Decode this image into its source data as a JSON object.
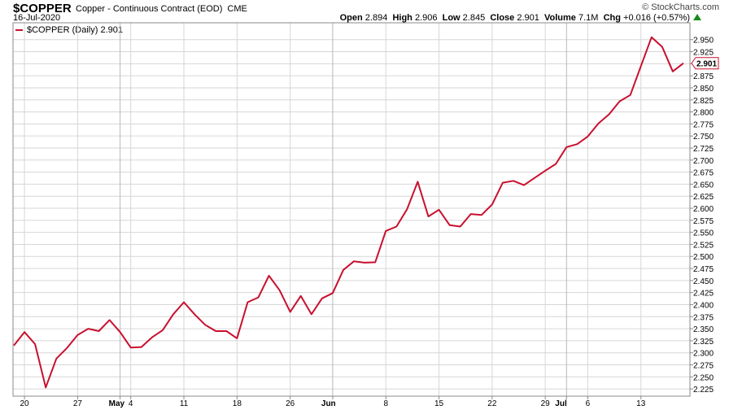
{
  "header": {
    "symbol": "$COPPER",
    "description": "Copper - Continuous Contract (EOD)",
    "exchange": "CME",
    "date": "16-Jul-2020",
    "credit": "© StockCharts.com",
    "open_label": "Open",
    "open": "2.894",
    "high_label": "High",
    "high": "2.906",
    "low_label": "Low",
    "low": "2.845",
    "close_label": "Close",
    "close": "2.901",
    "volume_label": "Volume",
    "volume": "7.1M",
    "chg_label": "Chg",
    "chg": "+0.016 (+0.57%)"
  },
  "legend": {
    "label": "$COPPER (Daily) 2.901"
  },
  "colors": {
    "line": "#c8102e",
    "grid": "#d6d6d6",
    "up_arrow": "#1a8c1a"
  },
  "chart_data": {
    "type": "line",
    "title": "$COPPER (Daily)",
    "ylim": [
      2.21,
      2.985
    ],
    "grid": true,
    "legend_position": "top-left",
    "last_value_label": "2.901",
    "y_ticks": [
      "2.950",
      "2.925",
      "2.900",
      "2.875",
      "2.850",
      "2.825",
      "2.800",
      "2.775",
      "2.750",
      "2.725",
      "2.700",
      "2.675",
      "2.650",
      "2.625",
      "2.600",
      "2.575",
      "2.550",
      "2.525",
      "2.500",
      "2.475",
      "2.450",
      "2.425",
      "2.400",
      "2.375",
      "2.350",
      "2.325",
      "2.300",
      "2.275",
      "2.250",
      "2.225"
    ],
    "x_ticks": [
      {
        "label": "20",
        "index": 1,
        "bold": false
      },
      {
        "label": "27",
        "index": 6,
        "bold": false
      },
      {
        "label": "May",
        "index": 10,
        "bold": true
      },
      {
        "label": "4",
        "index": 11,
        "bold": false
      },
      {
        "label": "11",
        "index": 16,
        "bold": false
      },
      {
        "label": "18",
        "index": 21,
        "bold": false
      },
      {
        "label": "26",
        "index": 26,
        "bold": false
      },
      {
        "label": "Jun",
        "index": 30,
        "bold": true
      },
      {
        "label": "8",
        "index": 35,
        "bold": false
      },
      {
        "label": "15",
        "index": 40,
        "bold": false
      },
      {
        "label": "22",
        "index": 45,
        "bold": false
      },
      {
        "label": "29",
        "index": 50,
        "bold": false
      },
      {
        "label": "Jul",
        "index": 52,
        "bold": true
      },
      {
        "label": "6",
        "index": 54,
        "bold": false
      },
      {
        "label": "13",
        "index": 59,
        "bold": false
      }
    ],
    "series": [
      {
        "values": [
          2.315,
          2.343,
          2.318,
          2.228,
          2.288,
          2.31,
          2.337,
          2.35,
          2.345,
          2.368,
          2.343,
          2.311,
          2.312,
          2.332,
          2.347,
          2.38,
          2.405,
          2.38,
          2.358,
          2.345,
          2.345,
          2.33,
          2.405,
          2.415,
          2.46,
          2.43,
          2.385,
          2.418,
          2.38,
          2.413,
          2.424,
          2.472,
          2.49,
          2.487,
          2.488,
          2.553,
          2.562,
          2.598,
          2.655,
          2.583,
          2.597,
          2.565,
          2.562,
          2.588,
          2.586,
          2.608,
          2.653,
          2.657,
          2.648,
          2.663,
          2.678,
          2.692,
          2.727,
          2.733,
          2.749,
          2.776,
          2.795,
          2.822,
          2.835,
          2.895,
          2.955,
          2.935,
          2.884,
          2.901
        ]
      }
    ]
  }
}
